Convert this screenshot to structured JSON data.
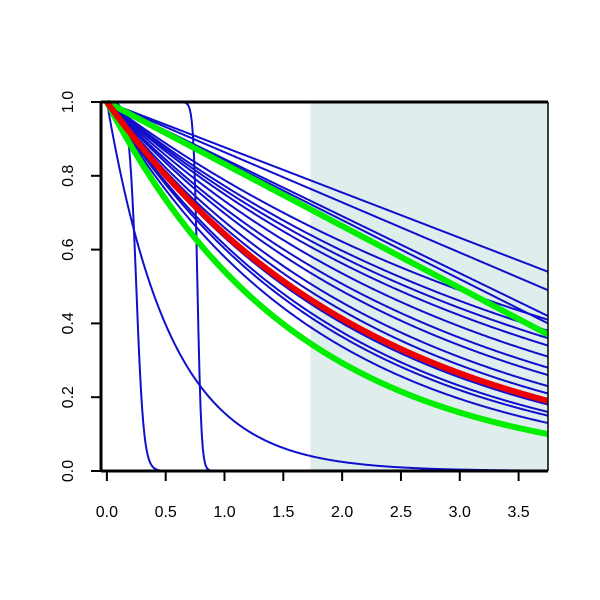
{
  "chart_data": {
    "type": "line",
    "title": "",
    "xlabel": "",
    "ylabel": "",
    "xlim": [
      -0.05,
      3.75
    ],
    "ylim": [
      0.0,
      1.0
    ],
    "x_ticks": [
      0.0,
      0.5,
      1.0,
      1.5,
      2.0,
      2.5,
      3.0,
      3.5
    ],
    "x_tick_labels": [
      "0.0",
      "0.5",
      "1.0",
      "1.5",
      "2.0",
      "2.5",
      "3.0",
      "3.5"
    ],
    "y_ticks": [
      0.0,
      0.2,
      0.4,
      0.6,
      0.8,
      1.0
    ],
    "y_tick_labels": [
      "0.0",
      "0.2",
      "0.4",
      "0.6",
      "0.8",
      "1.0"
    ],
    "grid": false,
    "legend": "none",
    "shaded_region": {
      "x_start": 1.73,
      "x_end": 3.75,
      "color": "#e0eded"
    },
    "series": [
      {
        "color": "#1010cc",
        "kind": "linear",
        "end_value": 0.54
      },
      {
        "color": "#1010cc",
        "kind": "linear",
        "end_value": 0.49
      },
      {
        "color": "#1010cc",
        "kind": "linear",
        "end_value": 0.42
      },
      {
        "color": "#1010cc",
        "kind": "exponential",
        "end_value": 0.41
      },
      {
        "color": "#1010cc",
        "kind": "linear",
        "end_value": 0.4
      },
      {
        "color": "#1010cc",
        "kind": "exponential",
        "end_value": 0.38
      },
      {
        "color": "#1010cc",
        "kind": "exponential",
        "end_value": 0.36
      },
      {
        "color": "#1010cc",
        "kind": "exponential",
        "end_value": 0.34
      },
      {
        "color": "#1010cc",
        "kind": "exponential",
        "end_value": 0.31
      },
      {
        "color": "#1010cc",
        "kind": "exponential",
        "end_value": 0.28
      },
      {
        "color": "#1010cc",
        "kind": "exponential",
        "end_value": 0.26
      },
      {
        "color": "#1010cc",
        "kind": "exponential",
        "end_value": 0.23
      },
      {
        "color": "#1010cc",
        "kind": "exponential",
        "end_value": 0.21
      },
      {
        "color": "#1010cc",
        "kind": "exponential",
        "end_value": 0.18
      },
      {
        "color": "#1010cc",
        "kind": "exponential",
        "end_value": 0.16
      },
      {
        "color": "#1010cc",
        "kind": "exponential",
        "end_value": 0.15
      },
      {
        "color": "#1010cc",
        "kind": "exponential",
        "end_value": 0.13
      },
      {
        "color": "#1010cc",
        "kind": "exponential",
        "rate": 1.85
      },
      {
        "color": "#1010cc",
        "kind": "logistic",
        "midpoint": 0.25,
        "steepness": 32
      },
      {
        "color": "#1010cc",
        "kind": "logistic",
        "midpoint": 0.77,
        "steepness": 60
      },
      {
        "color": "#00ee00",
        "kind": "linear",
        "end_value": 0.37,
        "bold": true
      },
      {
        "color": "#00ee00",
        "kind": "exponential",
        "end_value": 0.1,
        "bold": true
      },
      {
        "color": "#ee0000",
        "kind": "exponential",
        "end_value": 0.19,
        "bold": true
      }
    ]
  }
}
